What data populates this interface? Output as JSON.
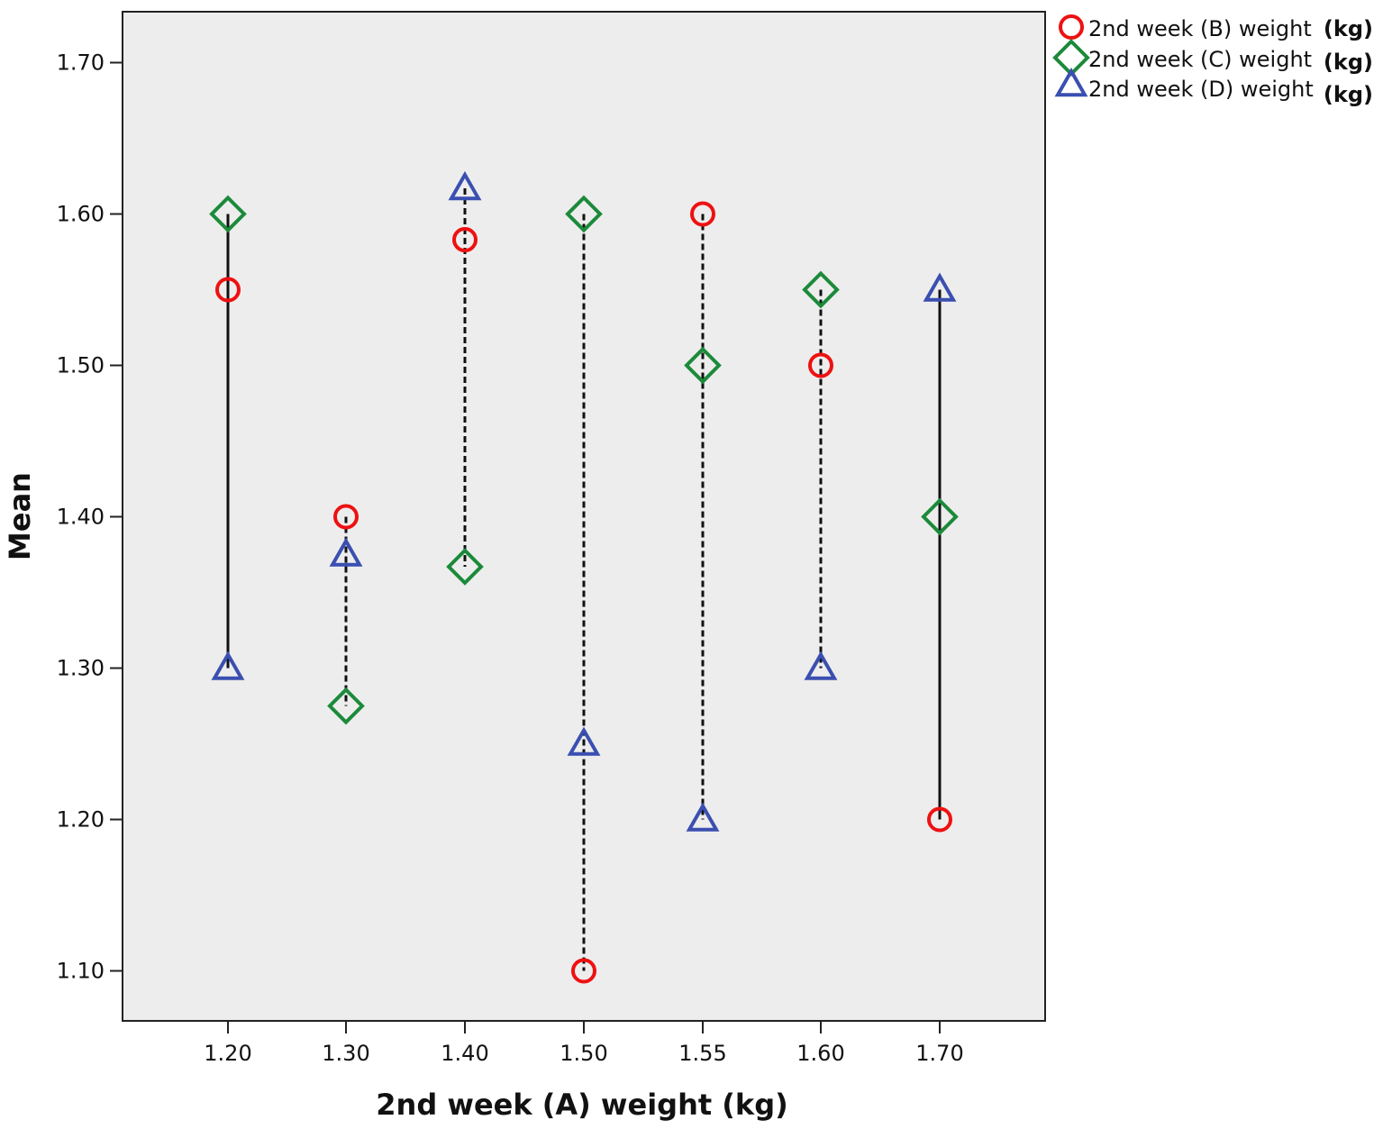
{
  "chart_data": {
    "type": "scatter",
    "title": "",
    "xlabel": "2nd week (A) weight (kg)",
    "ylabel": "Mean",
    "categories": [
      "1.20",
      "1.30",
      "1.40",
      "1.50",
      "1.55",
      "1.60",
      "1.70"
    ],
    "ylim": [
      1.06,
      1.735
    ],
    "yticks": [
      "1.10",
      "1.20",
      "1.30",
      "1.40",
      "1.50",
      "1.60",
      "1.70"
    ],
    "grid": false,
    "legend_position": "top-right (outside plot)",
    "plot_background": "#ededed",
    "series": [
      {
        "name": "2nd week (B) weight",
        "unit": "(kg)",
        "marker": "circle",
        "color": "#ee1111",
        "values": [
          1.55,
          1.4,
          1.583,
          1.1,
          1.6,
          1.5,
          1.2
        ]
      },
      {
        "name": "2nd week (C) weight",
        "unit": "(kg)",
        "marker": "diamond",
        "color": "#1b8a3a",
        "values": [
          1.6,
          1.275,
          1.367,
          1.6,
          1.5,
          1.55,
          1.4
        ]
      },
      {
        "name": "2nd week (D) weight",
        "unit": "(kg)",
        "marker": "triangle",
        "color": "#3a4fb0",
        "values": [
          1.3,
          1.375,
          1.617,
          1.25,
          1.2,
          1.3,
          1.55
        ]
      }
    ],
    "dropline_styles": [
      "solid",
      "dashed",
      "dashed",
      "dashed",
      "dashed",
      "dashed",
      "solid"
    ]
  }
}
